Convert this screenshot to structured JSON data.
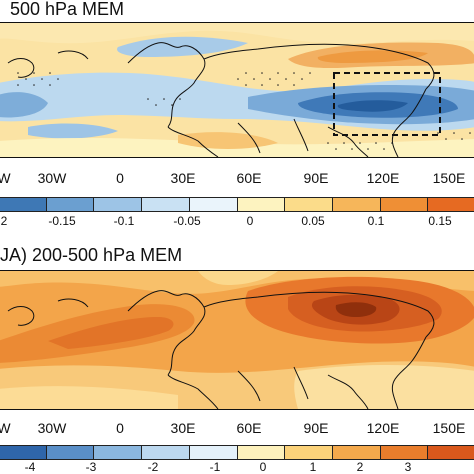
{
  "panels": [
    {
      "title": "500 hPa MEM",
      "lon_labels": [
        "W",
        "30W",
        "0",
        "30E",
        "60E",
        "90E",
        "120E",
        "150E"
      ],
      "colorbar": {
        "ticks": [
          "2",
          "-0.15",
          "-0.1",
          "-0.05",
          "0",
          "0.05",
          "0.1",
          "0.15"
        ],
        "colors": [
          "#3e78b5",
          "#6b9fd0",
          "#9dc4e6",
          "#c9e1f3",
          "#eaf4fb",
          "#fdf3c0",
          "#fbdc8a",
          "#f6b65a",
          "#ef8f35",
          "#e66a22"
        ]
      },
      "box_label": "dashed-box"
    },
    {
      "title": "JA) 200-500 hPa MEM",
      "lon_labels": [
        "W",
        "30W",
        "0",
        "30E",
        "60E",
        "90E",
        "120E",
        "150E"
      ],
      "colorbar": {
        "ticks": [
          "-4",
          "-3",
          "-2",
          "-1",
          "0",
          "1",
          "2",
          "3"
        ],
        "colors": [
          "#2f66aa",
          "#5a8fc8",
          "#8bb7df",
          "#bcd8ef",
          "#e4f1fa",
          "#fdf1bc",
          "#fbd27a",
          "#f4a94c",
          "#e97d2c",
          "#d9581c"
        ]
      }
    }
  ]
}
